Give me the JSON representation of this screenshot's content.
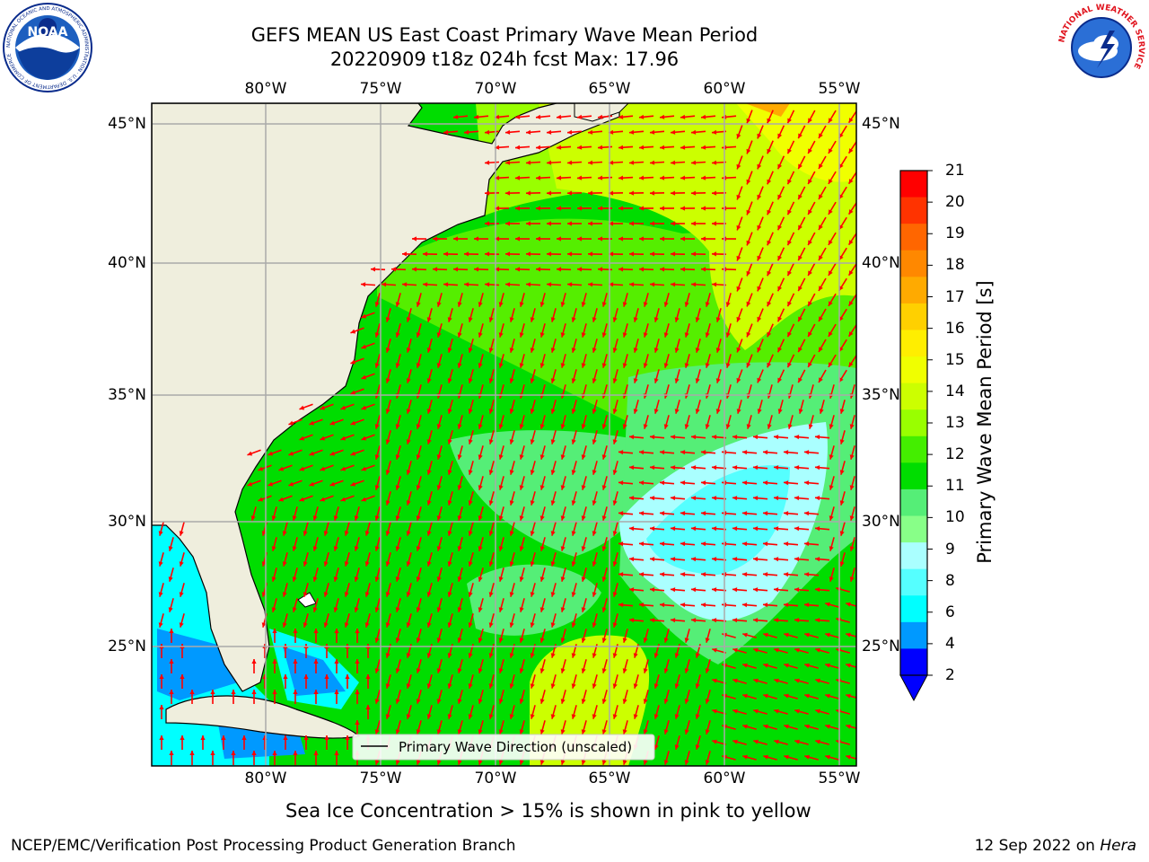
{
  "header": {
    "title_line1": "GEFS MEAN US East Coast Primary Wave Mean Period",
    "title_line2": "20220909 t18z 024h fcst   Max: 17.96",
    "logo_left": "NOAA",
    "logo_left_ring_text": "NATIONAL OCEANIC AND ATMOSPHERIC ADMINISTRATION · U.S. DEPARTMENT OF COMMERCE",
    "logo_right_ring_text": "NATIONAL WEATHER SERVICE"
  },
  "map": {
    "lon_labels": [
      "80°W",
      "75°W",
      "70°W",
      "65°W",
      "60°W",
      "55°W"
    ],
    "lat_labels": [
      "45°N",
      "40°N",
      "35°N",
      "30°N",
      "25°N"
    ],
    "legend_label": "Primary Wave Direction (unscaled)"
  },
  "colorbar": {
    "label": "Primary Wave Mean Period [s]",
    "ticks": [
      "21",
      "20",
      "19",
      "18",
      "17",
      "16",
      "15",
      "14",
      "13",
      "12",
      "11",
      "10",
      "9",
      "8",
      "6",
      "4",
      "2"
    ],
    "colors": [
      "#ff0000",
      "#ff3300",
      "#ff6600",
      "#ff8800",
      "#ffaa00",
      "#ffd000",
      "#ffee00",
      "#f0ff00",
      "#ccff00",
      "#99ff00",
      "#44ee00",
      "#00dd00",
      "#55ee77",
      "#88ff88",
      "#aaffff",
      "#55ffff",
      "#00ffff",
      "#0099ff",
      "#0000ff"
    ]
  },
  "footer": {
    "note": "Sea Ice Concentration > 15% is shown in pink to yellow",
    "left": "NCEP/EMC/Verification Post Processing Product Generation Branch",
    "right_date": "12 Sep 2022 on",
    "right_machine": "Hera"
  }
}
